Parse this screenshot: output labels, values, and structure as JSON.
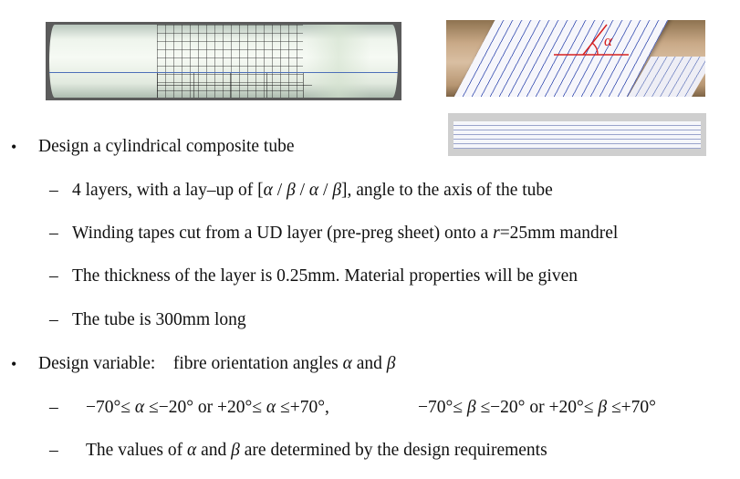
{
  "photos": {
    "tube_icon": "composite-tube-photo",
    "winding_icon": "tape-winding-photo",
    "strip_icon": "prepreg-strip-photo",
    "angle_marker": "α"
  },
  "bullets": [
    {
      "text": "Design a cylindrical composite tube",
      "subitems": [
        {
          "pre": "4 layers,  with a lay–up of [",
          "a1": "α",
          "s1": " / ",
          "b1": "β",
          "s2": " / ",
          "a2": "α",
          "s3": " / ",
          "b2": "β",
          "post": "], angle to the axis of the tube"
        },
        {
          "pre": "Winding tapes cut from a UD layer (pre-preg sheet) onto a ",
          "var": "r",
          "post": "=25mm mandrel"
        },
        {
          "text": "The thickness of the layer is 0.25mm.   Material properties will be given"
        },
        {
          "text": "The tube is 300mm long"
        }
      ]
    },
    {
      "label": "Design variable:",
      "pre": "fibre orientation angles ",
      "a": "α",
      "mid": " and ",
      "b": "β",
      "subitems": [
        {
          "c1_pre": "−70°≤ ",
          "c1_var": "α",
          "c1_post": " ≤−20° or  +20°≤ ",
          "c1_var2": "α",
          "c1_end": " ≤+70°,",
          "c2_pre": "−70°≤ ",
          "c2_var": "β",
          "c2_post": " ≤−20° or  +20°≤ ",
          "c2_var2": "β",
          "c2_end": " ≤+70°"
        },
        {
          "pre": "The values of ",
          "a": "α",
          "mid": " and ",
          "b": "β",
          "post": " are determined by the design requirements"
        }
      ]
    }
  ],
  "markers": {
    "bullet": "•",
    "dash": "–"
  }
}
